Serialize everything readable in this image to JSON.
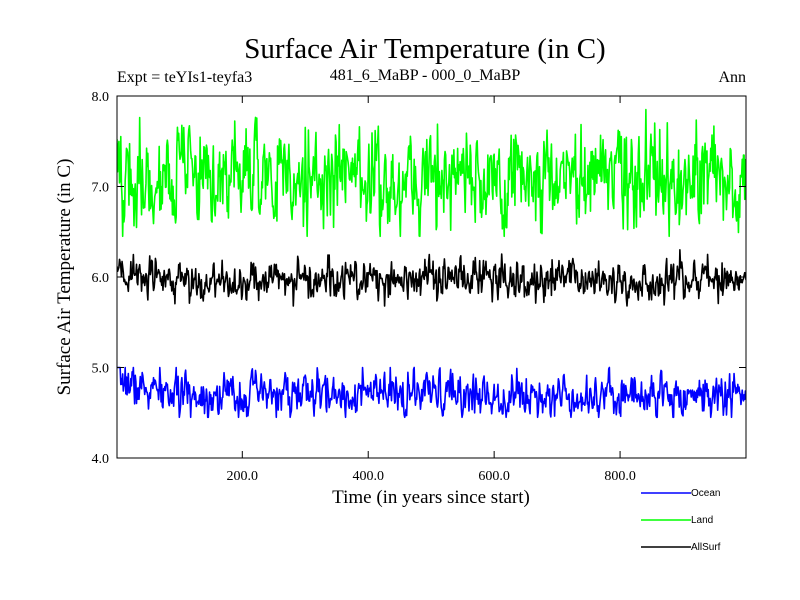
{
  "chart_data": {
    "type": "line",
    "title": "Surface Air Temperature (in C)",
    "subtitle_left": "Expt = teYIs1-teyfa3",
    "subtitle_center": "481_6_MaBP - 000_0_MaBP",
    "subtitle_right": "Ann",
    "xlabel": "Time (in years since start)",
    "ylabel": "Surface Air Temperature (in C)",
    "xlim": [
      1,
      1000
    ],
    "ylim": [
      4.0,
      8.0
    ],
    "xticks": [
      200,
      400,
      600,
      800
    ],
    "xtick_labels": [
      "200.0",
      "400.0",
      "600.0",
      "800.0"
    ],
    "yticks": [
      4.0,
      5.0,
      6.0,
      7.0,
      8.0
    ],
    "ytick_labels": [
      "4.0",
      "5.0",
      "6.0",
      "7.0",
      "8.0"
    ],
    "grid": false,
    "legend_position": "bottom-right, below plot",
    "series": [
      {
        "name": "Ocean",
        "color": "#0000ff",
        "mean": 4.7,
        "amplitude": 0.12,
        "start_value": 4.95,
        "min_approx": 4.45,
        "max_approx": 5.0
      },
      {
        "name": "Land",
        "color": "#00ff00",
        "mean": 7.1,
        "amplitude": 0.28,
        "start_value": 7.1,
        "min_approx": 6.45,
        "max_approx": 7.85
      },
      {
        "name": "AllSurf",
        "color": "#000000",
        "mean": 5.97,
        "amplitude": 0.11,
        "start_value": 6.05,
        "min_approx": 5.68,
        "max_approx": 6.3
      }
    ]
  }
}
